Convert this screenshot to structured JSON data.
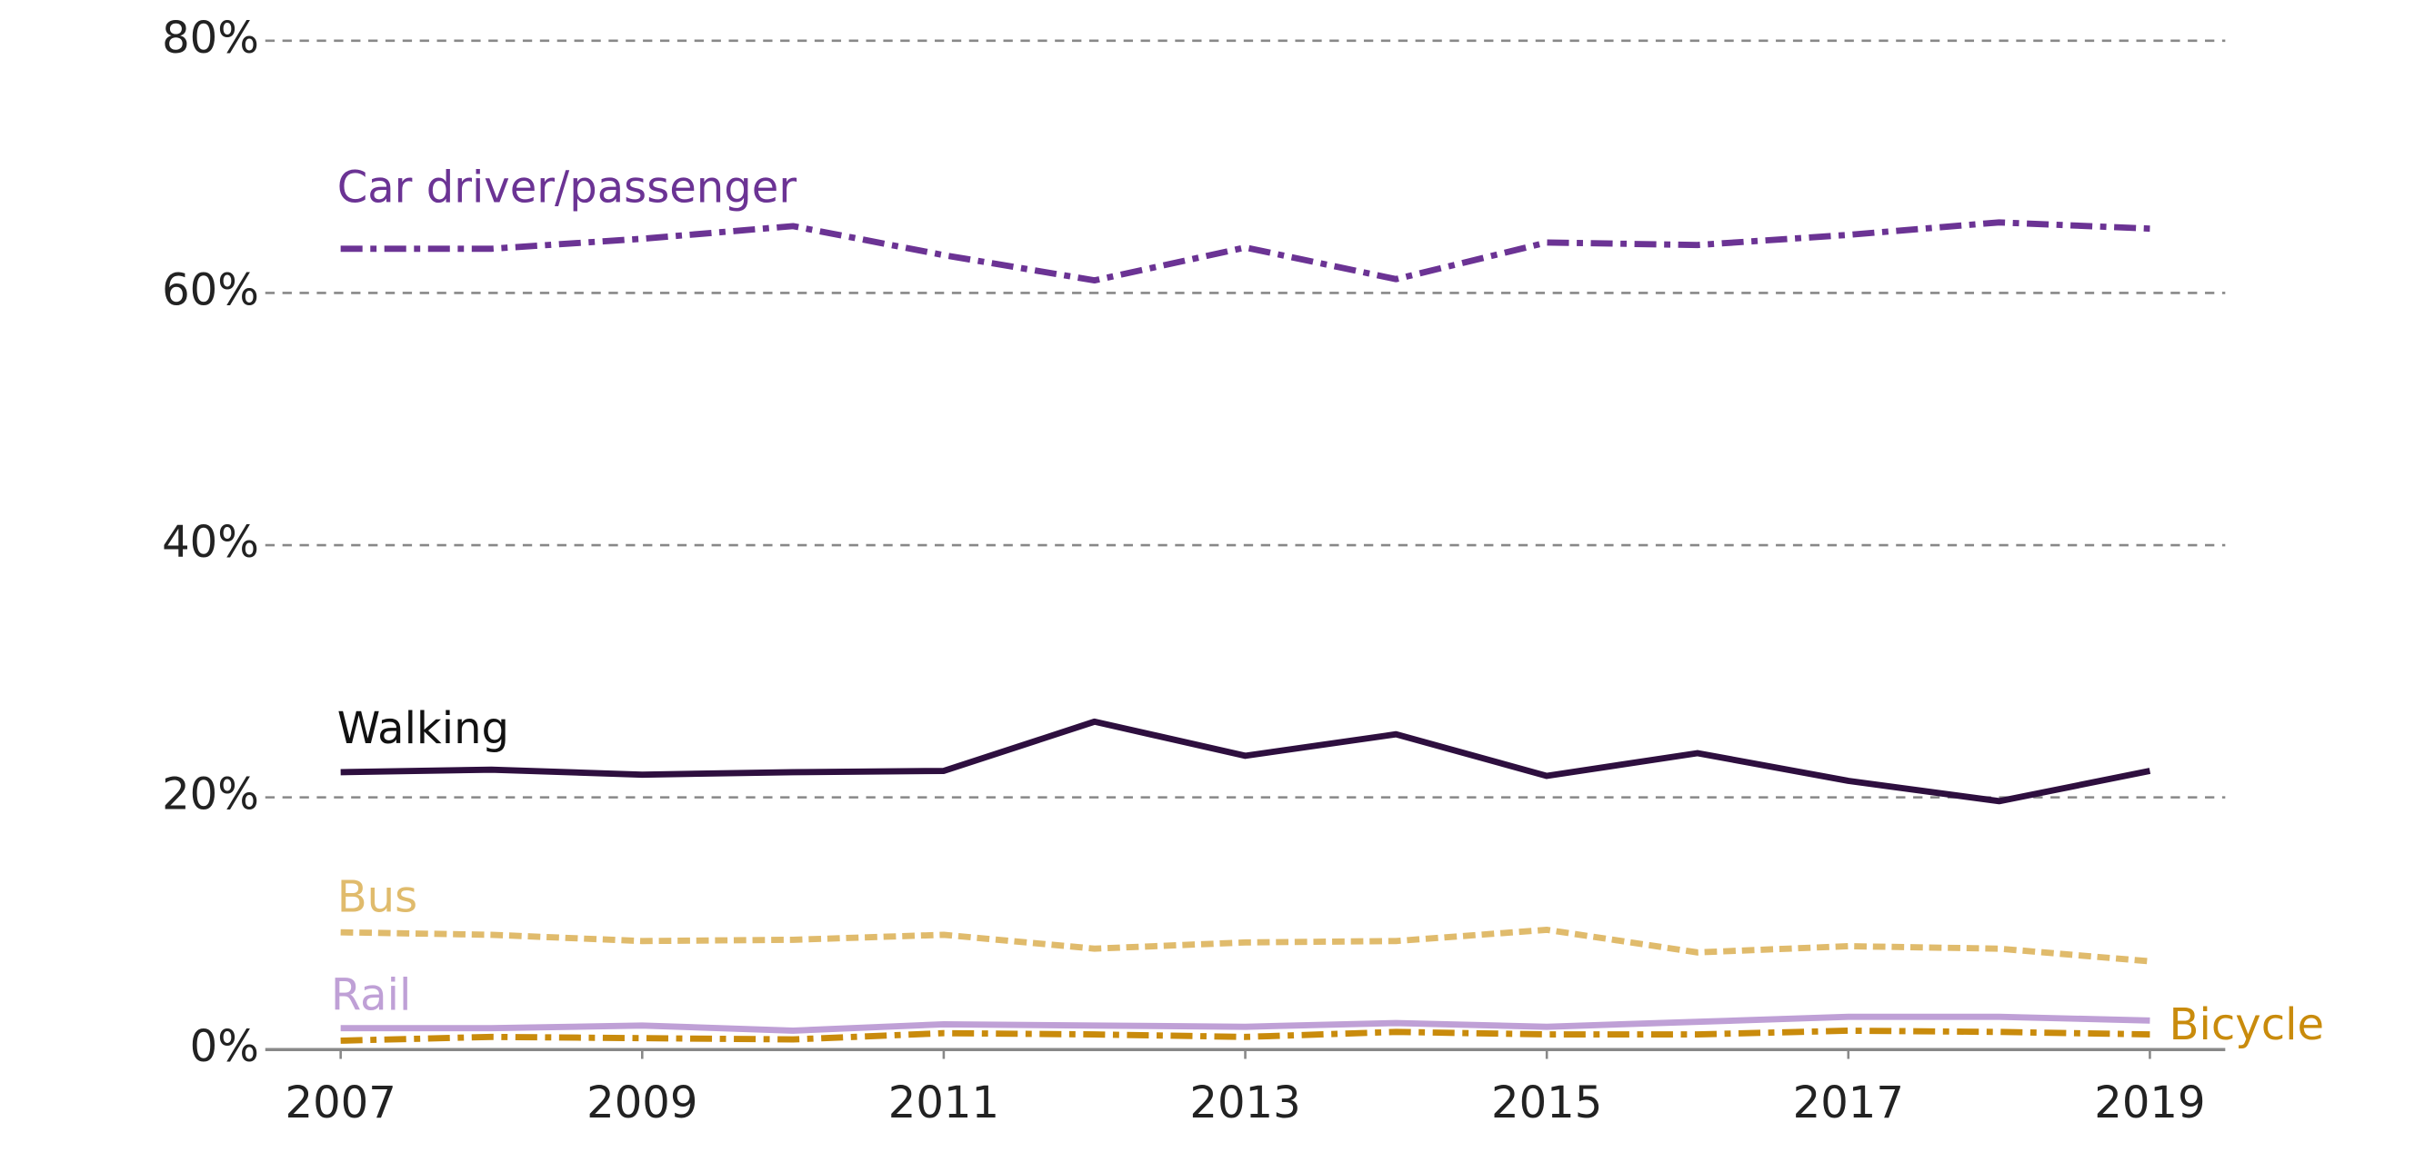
{
  "chart_data": {
    "type": "line",
    "x": [
      2007,
      2008,
      2009,
      2010,
      2011,
      2012,
      2013,
      2014,
      2015,
      2016,
      2017,
      2018,
      2019
    ],
    "xlim": [
      2006.5,
      2019.5
    ],
    "xticks": [
      2007,
      2009,
      2011,
      2013,
      2015,
      2017,
      2019
    ],
    "ylim": [
      0,
      80
    ],
    "yticks": [
      {
        "value": 0,
        "label": "0%"
      },
      {
        "value": 20,
        "label": "20%"
      },
      {
        "value": 40,
        "label": "40%"
      },
      {
        "value": 60,
        "label": "60%"
      },
      {
        "value": 80,
        "label": "80%"
      }
    ],
    "grid": true,
    "series": [
      {
        "name": "Car driver/passenger",
        "color": "#6b3394",
        "dash": "dashdot",
        "values": [
          63.5,
          63.5,
          64.3,
          65.3,
          63.0,
          61.0,
          63.6,
          61.1,
          64.0,
          63.8,
          64.6,
          65.6,
          65.1
        ]
      },
      {
        "name": "Walking",
        "color": "#2e0f3f",
        "dash": "solid",
        "values": [
          22.0,
          22.2,
          21.8,
          22.0,
          22.1,
          26.0,
          23.3,
          25.0,
          21.7,
          23.5,
          21.3,
          19.7,
          22.1
        ]
      },
      {
        "name": "Bus",
        "color": "#e0bb6c",
        "dash": "dashed",
        "values": [
          9.3,
          9.1,
          8.6,
          8.7,
          9.1,
          8.0,
          8.5,
          8.6,
          9.5,
          7.7,
          8.2,
          8.0,
          7.0
        ]
      },
      {
        "name": "Rail",
        "color": "#bfa0d6",
        "dash": "solid",
        "values": [
          1.7,
          1.7,
          1.9,
          1.5,
          2.0,
          1.9,
          1.8,
          2.1,
          1.8,
          2.2,
          2.6,
          2.6,
          2.3
        ]
      },
      {
        "name": "Bicycle",
        "color": "#c98b0c",
        "dash": "dashdot",
        "values": [
          0.7,
          1.0,
          0.9,
          0.8,
          1.3,
          1.2,
          1.0,
          1.4,
          1.2,
          1.2,
          1.5,
          1.4,
          1.2
        ]
      }
    ]
  }
}
